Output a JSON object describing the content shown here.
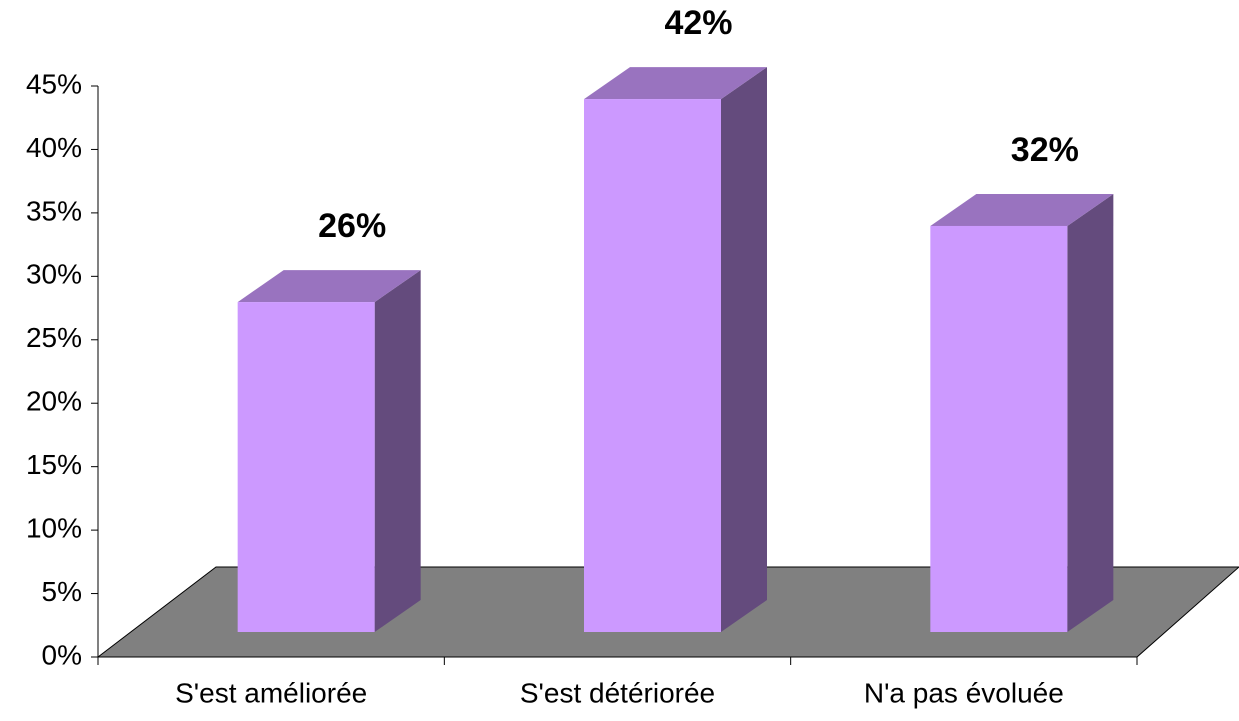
{
  "chart_data": {
    "type": "bar3d",
    "categories": [
      "S'est améliorée",
      "S'est détériorée",
      "N'a pas évoluée"
    ],
    "values": [
      26,
      42,
      32
    ],
    "value_labels": [
      "26%",
      "42%",
      "32%"
    ],
    "color": "#cc99ff",
    "floor_color": "#808080",
    "ylim": [
      0,
      45
    ],
    "yticks": [
      {
        "value": 0,
        "label": "0%"
      },
      {
        "value": 5,
        "label": "5%"
      },
      {
        "value": 10,
        "label": "10%"
      },
      {
        "value": 15,
        "label": "15%"
      },
      {
        "value": 20,
        "label": "20%"
      },
      {
        "value": 25,
        "label": "25%"
      },
      {
        "value": 30,
        "label": "30%"
      },
      {
        "value": 35,
        "label": "35%"
      },
      {
        "value": 40,
        "label": "40%"
      },
      {
        "value": 45,
        "label": "45%"
      }
    ]
  }
}
